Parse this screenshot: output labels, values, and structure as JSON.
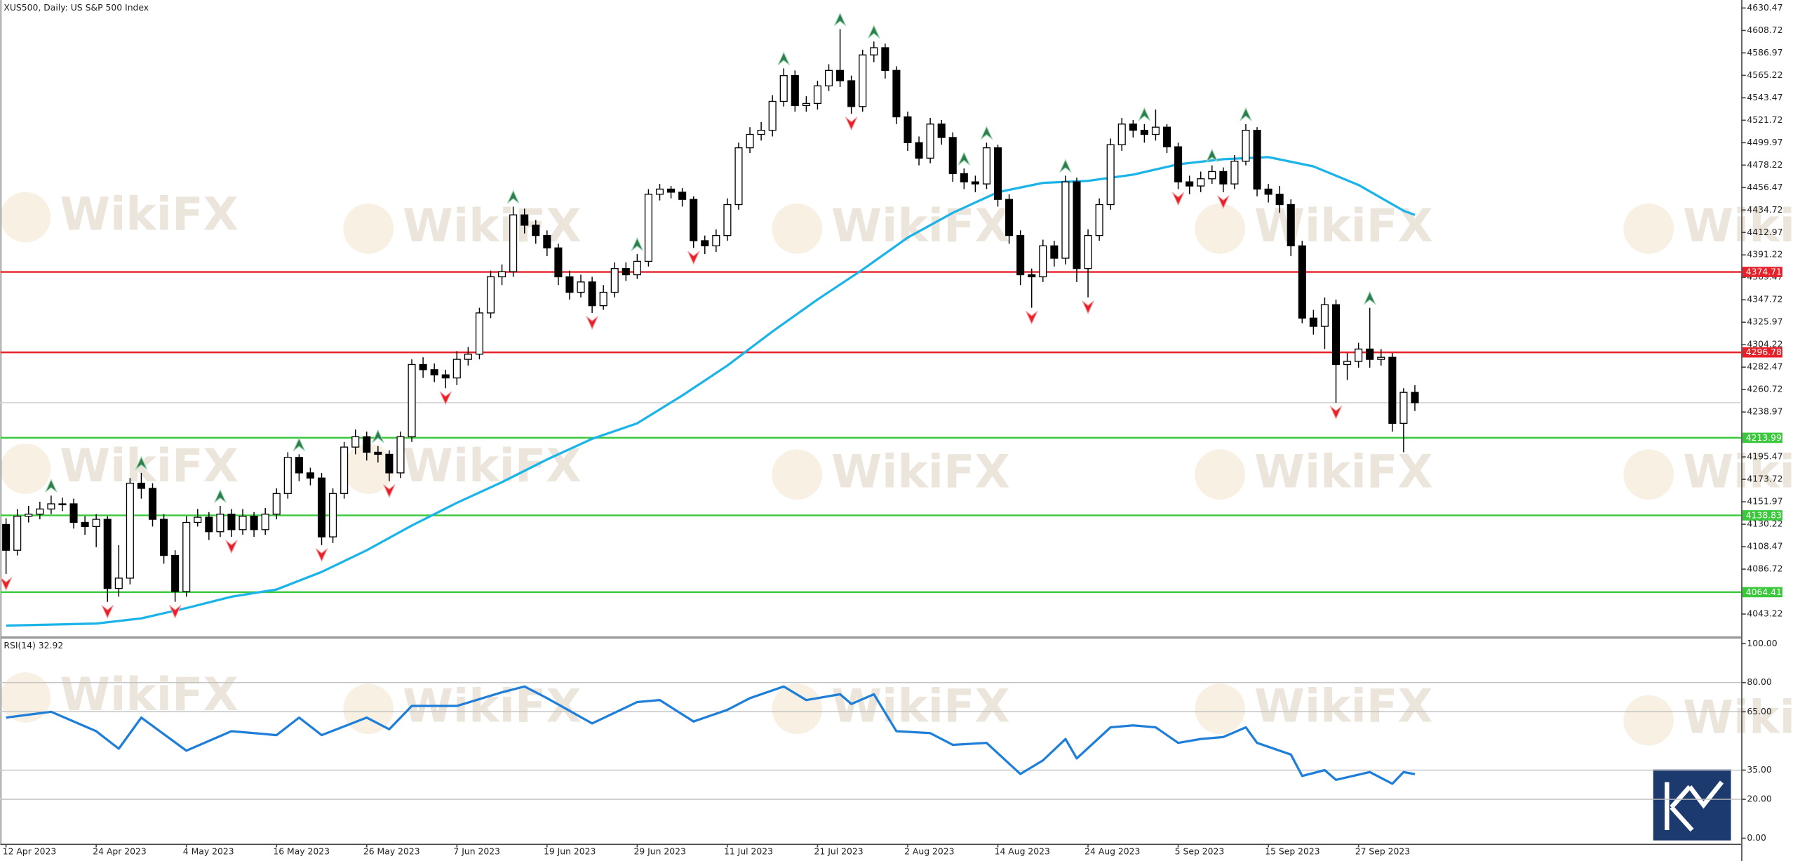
{
  "chart_data": {
    "type": "candlestick",
    "title": "XUS500, Daily:  US S&P 500 Index",
    "watermark": "WikiFX",
    "categories": [
      "12 Apr 2023",
      null,
      null,
      null,
      null,
      null,
      null,
      null,
      "24 Apr 2023",
      null,
      null,
      null,
      null,
      null,
      null,
      null,
      "4 May 2023",
      null,
      null,
      null,
      null,
      null,
      null,
      null,
      "16 May 2023",
      null,
      null,
      null,
      null,
      null,
      null,
      null,
      "26 May 2023",
      null,
      null,
      null,
      null,
      null,
      null,
      null,
      "7 Jun 2023",
      null,
      null,
      null,
      null,
      null,
      null,
      null,
      "19 Jun 2023",
      null,
      null,
      null,
      null,
      null,
      null,
      null,
      "29 Jun 2023",
      null,
      null,
      null,
      null,
      null,
      null,
      null,
      "11 Jul 2023",
      null,
      null,
      null,
      null,
      null,
      null,
      null,
      "21 Jul 2023",
      null,
      null,
      null,
      null,
      null,
      null,
      null,
      "2 Aug 2023",
      null,
      null,
      null,
      null,
      null,
      null,
      null,
      "14 Aug 2023",
      null,
      null,
      null,
      null,
      null,
      null,
      null,
      "24 Aug 2023",
      null,
      null,
      null,
      null,
      null,
      null,
      null,
      "5 Sep 2023",
      null,
      null,
      null,
      null,
      null,
      null,
      null,
      "15 Sep 2023",
      null,
      null,
      null,
      null,
      null,
      null,
      null,
      "27 Sep 2023",
      null,
      null,
      null,
      null,
      null
    ],
    "open": [
      4130,
      4105,
      4138,
      4140,
      4145,
      4150,
      4150,
      4132,
      4128,
      4135,
      4068,
      4078,
      4170,
      4165,
      4135,
      4100,
      4065,
      4132,
      4137,
      4123,
      4140,
      4125,
      4138,
      4125,
      4140,
      4160,
      4195,
      4180,
      4175,
      4118,
      4160,
      4205,
      4215,
      4200,
      4198,
      4180,
      4215,
      4285,
      4280,
      4275,
      4272,
      4290,
      4295,
      4335,
      4370,
      4375,
      4430,
      4420,
      4410,
      4398,
      4370,
      4355,
      4365,
      4342,
      4355,
      4378,
      4372,
      4385,
      4450,
      4455,
      4452,
      4445,
      4405,
      4400,
      4410,
      4440,
      4495,
      4508,
      4512,
      4540,
      4565,
      4536,
      4538,
      4555,
      4570,
      4560,
      4535,
      4585,
      4592,
      4570,
      4525,
      4500,
      4485,
      4518,
      4505,
      4470,
      4462,
      4460,
      4495,
      4445,
      4410,
      4372,
      4370,
      4400,
      4388,
      4462,
      4378,
      4410,
      4440,
      4498,
      4518,
      4512,
      4508,
      4515,
      4496,
      4462,
      4458,
      4465,
      4472,
      4460,
      4482,
      4512,
      4455,
      4450,
      4440,
      4400,
      4330,
      4322,
      4343,
      4285,
      4288,
      4300,
      4290,
      4292,
      4228,
      4258
    ],
    "high": [
      4136,
      4145,
      4148,
      4152,
      4158,
      4156,
      4155,
      4138,
      4140,
      4138,
      4110,
      4175,
      4180,
      4170,
      4140,
      4105,
      4138,
      4145,
      4142,
      4148,
      4145,
      4145,
      4142,
      4146,
      4165,
      4200,
      4198,
      4185,
      4180,
      4165,
      4210,
      4222,
      4220,
      4206,
      4202,
      4220,
      4290,
      4292,
      4286,
      4280,
      4298,
      4302,
      4340,
      4376,
      4382,
      4438,
      4436,
      4425,
      4415,
      4402,
      4376,
      4372,
      4370,
      4362,
      4384,
      4384,
      4392,
      4455,
      4460,
      4458,
      4456,
      4448,
      4410,
      4416,
      4446,
      4500,
      4515,
      4520,
      4546,
      4572,
      4570,
      4545,
      4560,
      4576,
      4610,
      4565,
      4590,
      4598,
      4596,
      4574,
      4530,
      4506,
      4524,
      4522,
      4510,
      4475,
      4468,
      4500,
      4498,
      4450,
      4415,
      4378,
      4406,
      4405,
      4468,
      4466,
      4416,
      4446,
      4504,
      4524,
      4522,
      4518,
      4532,
      4518,
      4500,
      4468,
      4472,
      4478,
      4476,
      4488,
      4518,
      4515,
      4460,
      4458,
      4445,
      4405,
      4338,
      4350,
      4348,
      4296,
      4306,
      4340,
      4300,
      4296,
      4262,
      4265
    ],
    "low": [
      4082,
      4100,
      4132,
      4135,
      4140,
      4143,
      4126,
      4120,
      4108,
      4055,
      4060,
      4072,
      4155,
      4128,
      4092,
      4055,
      4060,
      4128,
      4115,
      4118,
      4118,
      4120,
      4118,
      4120,
      4135,
      4155,
      4172,
      4168,
      4110,
      4112,
      4155,
      4198,
      4192,
      4190,
      4172,
      4175,
      4210,
      4272,
      4268,
      4262,
      4265,
      4284,
      4290,
      4330,
      4362,
      4370,
      4412,
      4402,
      4390,
      4362,
      4348,
      4350,
      4335,
      4338,
      4350,
      4366,
      4368,
      4380,
      4444,
      4446,
      4438,
      4398,
      4392,
      4394,
      4405,
      4435,
      4490,
      4502,
      4506,
      4535,
      4530,
      4530,
      4532,
      4550,
      4554,
      4528,
      4530,
      4578,
      4562,
      4518,
      4492,
      4478,
      4480,
      4498,
      4462,
      4455,
      4452,
      4455,
      4438,
      4402,
      4362,
      4340,
      4365,
      4380,
      4382,
      4365,
      4350,
      4405,
      4435,
      4492,
      4505,
      4500,
      4502,
      4490,
      4455,
      4450,
      4452,
      4460,
      4452,
      4455,
      4478,
      4448,
      4442,
      4432,
      4390,
      4325,
      4314,
      4300,
      4248,
      4270,
      4282,
      4282,
      4284,
      4220,
      4200,
      4240
    ],
    "close": [
      4105,
      4138,
      4140,
      4145,
      4150,
      4150,
      4132,
      4128,
      4135,
      4068,
      4078,
      4170,
      4165,
      4135,
      4100,
      4065,
      4132,
      4137,
      4123,
      4140,
      4125,
      4138,
      4125,
      4140,
      4160,
      4195,
      4180,
      4175,
      4118,
      4160,
      4205,
      4215,
      4200,
      4198,
      4180,
      4215,
      4285,
      4280,
      4275,
      4272,
      4290,
      4295,
      4335,
      4370,
      4375,
      4430,
      4420,
      4410,
      4398,
      4370,
      4355,
      4365,
      4342,
      4355,
      4378,
      4372,
      4385,
      4450,
      4455,
      4452,
      4445,
      4405,
      4400,
      4410,
      4440,
      4495,
      4508,
      4512,
      4540,
      4565,
      4536,
      4538,
      4555,
      4570,
      4560,
      4535,
      4585,
      4592,
      4570,
      4525,
      4500,
      4485,
      4518,
      4505,
      4470,
      4462,
      4460,
      4495,
      4445,
      4410,
      4372,
      4370,
      4400,
      4388,
      4462,
      4378,
      4410,
      4440,
      4498,
      4518,
      4512,
      4508,
      4515,
      4496,
      4462,
      4458,
      4465,
      4472,
      4460,
      4482,
      4512,
      4455,
      4450,
      4440,
      4400,
      4330,
      4322,
      4343,
      4285,
      4288,
      4300,
      4290,
      4292,
      4228,
      4258,
      4248
    ],
    "colors": {
      "up": "#ffffff",
      "down": "#000000",
      "outline": "#000000",
      "last": "#c8c8c8"
    },
    "ylim": [
      4021.07,
      4638.23
    ],
    "yticks": [
      4630.47,
      4608.72,
      4586.97,
      4565.22,
      4543.47,
      4521.72,
      4499.97,
      4478.22,
      4456.47,
      4434.72,
      4412.97,
      4391.22,
      4369.47,
      4347.72,
      4325.97,
      4304.22,
      4282.47,
      4260.72,
      4238.97,
      4195.47,
      4173.72,
      4151.97,
      4130.22,
      4108.47,
      4086.72,
      4043.22
    ],
    "ma": {
      "color": "#1cb4e8",
      "x": [
        0,
        4,
        8,
        12,
        16,
        20,
        24,
        28,
        32,
        36,
        40,
        44,
        48,
        52,
        56,
        60,
        64,
        68,
        72,
        76,
        80,
        84,
        88,
        92,
        96,
        100,
        104,
        108,
        112,
        116,
        120,
        124,
        125
      ],
      "values": [
        4032,
        4033,
        4034,
        4039,
        4049,
        4060,
        4067,
        4084,
        4105,
        4129,
        4151,
        4171,
        4193,
        4213,
        4228,
        4255,
        4284,
        4317,
        4348,
        4377,
        4408,
        4432,
        4452,
        4461,
        4463,
        4469,
        4479,
        4484,
        4486,
        4477,
        4459,
        4434,
        4430
      ]
    },
    "levels": [
      {
        "value": 4374.71,
        "color": "#e8202a"
      },
      {
        "value": 4296.78,
        "color": "#e8202a"
      },
      {
        "value": 4213.99,
        "color": "#3cc83c"
      },
      {
        "value": 4138.83,
        "color": "#3cc83c"
      },
      {
        "value": 4064.41,
        "color": "#3cc83c"
      }
    ],
    "fractals": {
      "up_color": "#2e7d4f",
      "down_color": "#e8202a",
      "up": [
        4,
        12,
        19,
        26,
        33,
        45,
        56,
        69,
        74,
        77,
        85,
        87,
        94,
        101,
        107,
        110,
        121
      ],
      "down": [
        0,
        9,
        15,
        20,
        28,
        34,
        39,
        52,
        61,
        75,
        91,
        96,
        104,
        108,
        118
      ]
    },
    "rsi": {
      "label": "RSI(14) 32.92",
      "color": "#1f7fd8",
      "x": [
        0,
        4,
        8,
        10,
        12,
        16,
        20,
        24,
        26,
        28,
        32,
        34,
        36,
        40,
        44,
        46,
        48,
        52,
        56,
        58,
        61,
        64,
        66,
        69,
        71,
        74,
        75,
        77,
        79,
        82,
        84,
        87,
        90,
        92,
        94,
        95,
        98,
        100,
        102,
        104,
        106,
        108,
        110,
        111,
        114,
        115,
        117,
        118,
        121,
        123,
        124,
        125
      ],
      "values": [
        62,
        65,
        55,
        46,
        62,
        45,
        55,
        53,
        62,
        53,
        62,
        56,
        68,
        68,
        75,
        78,
        72,
        59,
        70,
        71,
        60,
        66,
        72,
        78,
        71,
        74,
        69,
        74,
        55,
        54,
        48,
        49,
        33,
        40,
        51,
        41,
        57,
        58,
        57,
        49,
        51,
        52,
        57,
        49,
        43,
        32,
        35,
        30,
        34,
        28,
        34,
        32.92
      ],
      "ylim": [
        -2.9,
        102.9
      ],
      "yticks": [
        {
          "value": 100,
          "label": "100.00"
        },
        {
          "value": 80,
          "label": "80.00"
        },
        {
          "value": 65,
          "label": "65.00"
        },
        {
          "value": 35,
          "label": "35.00"
        },
        {
          "value": 20,
          "label": "20.00"
        },
        {
          "value": 0,
          "label": "0.00"
        }
      ],
      "levels": [
        80,
        65,
        35,
        20
      ]
    }
  }
}
